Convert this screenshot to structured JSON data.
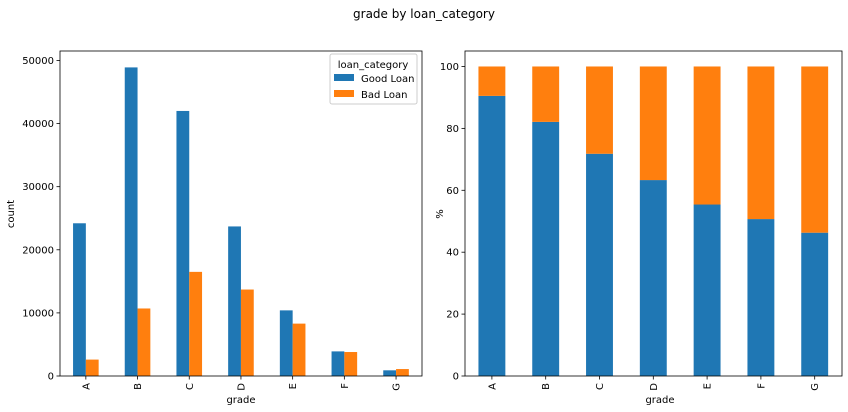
{
  "figure": {
    "suptitle": "grade by loan_category"
  },
  "colors": {
    "good_loan": "#1f77b4",
    "bad_loan": "#ff7f0e",
    "axis": "#000000",
    "background": "#ffffff"
  },
  "chart_data": [
    {
      "type": "bar",
      "grouped": true,
      "categories": [
        "A",
        "B",
        "C",
        "D",
        "E",
        "F",
        "G"
      ],
      "series": [
        {
          "name": "Good Loan",
          "values": [
            24200,
            48900,
            42000,
            23700,
            10400,
            3900,
            900
          ]
        },
        {
          "name": "Bad Loan",
          "values": [
            2600,
            10700,
            16500,
            13700,
            8300,
            3800,
            1100
          ]
        }
      ],
      "xlabel": "grade",
      "ylabel": "count",
      "ylim": [
        0,
        51500
      ],
      "yticks": [
        0,
        10000,
        20000,
        30000,
        40000,
        50000
      ],
      "legend": {
        "title": "loan_category",
        "position": "top-right"
      },
      "grid": false
    },
    {
      "type": "bar",
      "stacked": true,
      "categories": [
        "A",
        "B",
        "C",
        "D",
        "E",
        "F",
        "G"
      ],
      "series": [
        {
          "name": "Good Loan",
          "values": [
            90.5,
            82.1,
            71.8,
            63.3,
            55.4,
            50.7,
            46.3
          ]
        },
        {
          "name": "Bad Loan",
          "values": [
            9.5,
            17.9,
            28.2,
            36.7,
            44.6,
            49.3,
            53.7
          ]
        }
      ],
      "xlabel": "grade",
      "ylabel": "%",
      "ylim": [
        0,
        105
      ],
      "yticks": [
        0,
        20,
        40,
        60,
        80,
        100
      ],
      "grid": false
    }
  ]
}
